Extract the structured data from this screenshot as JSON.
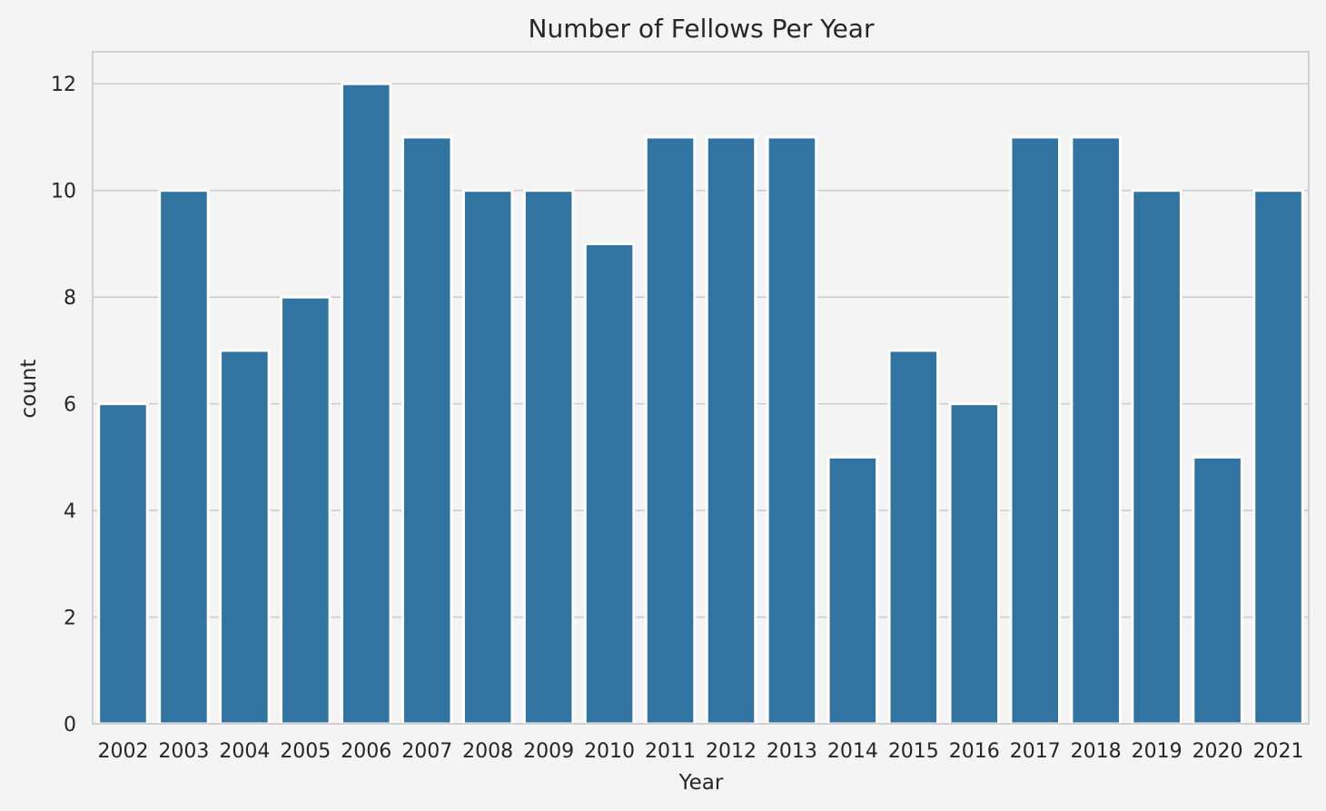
{
  "colors": {
    "page_background": "#f4f4f4",
    "plot_background": "#f4f4f4",
    "bar_fill": "#3274a1",
    "bar_edge": "#ffffff",
    "grid": "#cccccc",
    "frame": "#cccccc",
    "text": "#262626"
  },
  "chart_data": {
    "type": "bar",
    "title": "Number of Fellows Per Year",
    "xlabel": "Year",
    "ylabel": "count",
    "categories": [
      "2002",
      "2003",
      "2004",
      "2005",
      "2006",
      "2007",
      "2008",
      "2009",
      "2010",
      "2011",
      "2012",
      "2013",
      "2014",
      "2015",
      "2016",
      "2017",
      "2018",
      "2019",
      "2020",
      "2021"
    ],
    "values": [
      6,
      10,
      7,
      8,
      12,
      11,
      10,
      10,
      9,
      11,
      11,
      11,
      5,
      7,
      6,
      11,
      11,
      10,
      5,
      10
    ],
    "yticks": [
      0,
      2,
      4,
      6,
      8,
      10,
      12
    ],
    "ylim": [
      0,
      12.6
    ],
    "grid": "horizontal",
    "legend": "none"
  }
}
